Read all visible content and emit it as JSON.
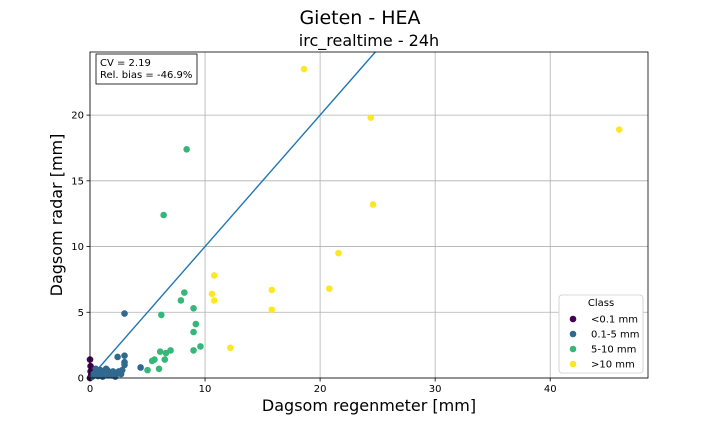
{
  "chart_data": {
    "type": "scatter",
    "title": "Gieten - HEA",
    "subtitle": "irc_realtime - 24h",
    "xlabel": "Dagsom regenmeter [mm]",
    "ylabel": "Dagsom radar [mm]",
    "xlim": [
      0,
      48.5
    ],
    "ylim": [
      0,
      24.8
    ],
    "xticks": [
      0,
      10,
      20,
      30,
      40
    ],
    "yticks": [
      0,
      5,
      10,
      15,
      20
    ],
    "grid": true,
    "stats": [
      "CV = 2.19",
      "Rel. bias = -46.9%"
    ],
    "reference_line": {
      "from": [
        0,
        0
      ],
      "to": [
        24.8,
        24.8
      ],
      "color": "#1f77b4"
    },
    "legend": {
      "title": "Class",
      "position": "lower-right"
    },
    "series": [
      {
        "name": "<0.1 mm",
        "color": "#440154",
        "points": [
          [
            0.0,
            1.4
          ],
          [
            0.05,
            0.5
          ],
          [
            0.1,
            0.2
          ],
          [
            0.0,
            0.0
          ],
          [
            0.05,
            0.9
          ]
        ]
      },
      {
        "name": "0.1-5 mm",
        "color": "#31688e",
        "points": [
          [
            3.0,
            4.9
          ],
          [
            3.0,
            1.7
          ],
          [
            3.0,
            1.2
          ],
          [
            2.4,
            1.6
          ],
          [
            3.0,
            1.0
          ],
          [
            2.8,
            0.6
          ],
          [
            2.5,
            0.5
          ],
          [
            2.3,
            0.3
          ],
          [
            2.0,
            0.5
          ],
          [
            1.8,
            0.4
          ],
          [
            1.5,
            0.6
          ],
          [
            1.4,
            0.7
          ],
          [
            1.2,
            0.5
          ],
          [
            1.0,
            0.4
          ],
          [
            0.8,
            0.3
          ],
          [
            0.6,
            0.5
          ],
          [
            0.5,
            0.7
          ],
          [
            0.4,
            0.2
          ],
          [
            0.3,
            0.3
          ],
          [
            0.2,
            0.1
          ],
          [
            1.6,
            0.2
          ],
          [
            2.2,
            0.1
          ],
          [
            1.1,
            0.1
          ],
          [
            4.4,
            0.8
          ],
          [
            0.7,
            0.15
          ],
          [
            1.9,
            0.2
          ],
          [
            2.7,
            0.3
          ],
          [
            0.9,
            0.6
          ]
        ]
      },
      {
        "name": "5-10 mm",
        "color": "#35b779",
        "points": [
          [
            8.4,
            17.4
          ],
          [
            6.4,
            12.4
          ],
          [
            8.2,
            6.5
          ],
          [
            7.9,
            5.9
          ],
          [
            9.0,
            5.3
          ],
          [
            6.2,
            4.8
          ],
          [
            9.2,
            4.1
          ],
          [
            9.0,
            3.5
          ],
          [
            9.6,
            2.4
          ],
          [
            9.0,
            2.1
          ],
          [
            7.0,
            2.1
          ],
          [
            6.6,
            1.9
          ],
          [
            6.1,
            2.0
          ],
          [
            6.5,
            1.4
          ],
          [
            5.6,
            1.4
          ],
          [
            5.4,
            1.3
          ],
          [
            6.0,
            0.7
          ],
          [
            5.0,
            0.6
          ]
        ]
      },
      {
        "name": ">10 mm",
        "color": "#fde725",
        "points": [
          [
            18.6,
            23.5
          ],
          [
            24.4,
            19.8
          ],
          [
            46.0,
            18.9
          ],
          [
            24.6,
            13.2
          ],
          [
            21.6,
            9.5
          ],
          [
            10.8,
            7.8
          ],
          [
            15.8,
            6.7
          ],
          [
            20.8,
            6.8
          ],
          [
            10.6,
            6.4
          ],
          [
            10.8,
            5.9
          ],
          [
            15.8,
            5.2
          ],
          [
            12.2,
            2.3
          ]
        ]
      }
    ]
  }
}
